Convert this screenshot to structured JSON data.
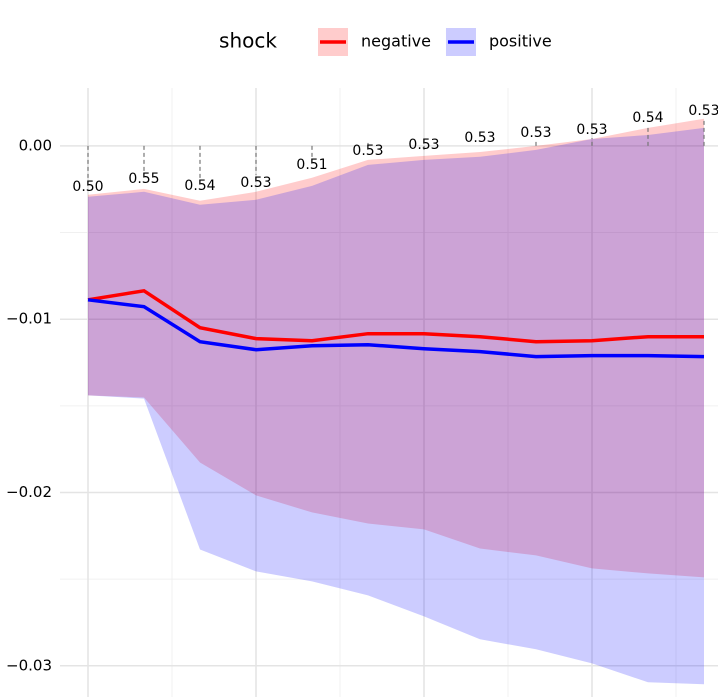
{
  "chart_data": {
    "type": "line",
    "legend_title": "shock",
    "x": [
      0,
      1,
      2,
      3,
      4,
      5,
      6,
      7,
      8,
      9,
      10,
      11
    ],
    "series": [
      {
        "name": "negative",
        "color": "#ff0000",
        "band_color": "rgba(255,0,0,0.2)",
        "values": [
          -0.00888,
          -0.00836,
          -0.01049,
          -0.01112,
          -0.01124,
          -0.01084,
          -0.01084,
          -0.01101,
          -0.0113,
          -0.01124,
          -0.01101,
          -0.01101
        ],
        "upper": [
          -0.00282,
          -0.00248,
          -0.00317,
          -0.00265,
          -0.00184,
          -0.00081,
          -0.00058,
          -0.00035,
          0,
          0.0004,
          0.00104,
          0.00156
        ],
        "lower": [
          -0.0144,
          -0.01452,
          -0.01827,
          -0.02017,
          -0.02115,
          -0.02179,
          -0.02213,
          -0.02323,
          -0.02363,
          -0.02438,
          -0.02467,
          -0.0249
        ]
      },
      {
        "name": "positive",
        "color": "#0000ff",
        "band_color": "rgba(0,0,255,0.2)",
        "values": [
          -0.00888,
          -0.00928,
          -0.0113,
          -0.01176,
          -0.01153,
          -0.01147,
          -0.0117,
          -0.01187,
          -0.01216,
          -0.0121,
          -0.0121,
          -0.01216
        ],
        "upper": [
          -0.00294,
          -0.00265,
          -0.0034,
          -0.00311,
          -0.00231,
          -0.0011,
          -0.00081,
          -0.00063,
          -0.00023,
          0.0004,
          0.00063,
          0.00104
        ],
        "lower": [
          -0.0144,
          -0.01458,
          -0.02329,
          -0.02455,
          -0.02513,
          -0.02594,
          -0.02715,
          -0.02847,
          -0.02905,
          -0.02986,
          -0.03095,
          -0.03107
        ]
      }
    ],
    "annotations": [
      "0.50",
      "0.55",
      "0.54",
      "0.53",
      "0.51",
      "0.53",
      "0.53",
      "0.53",
      "0.53",
      "0.53",
      "0.54",
      "0.53"
    ],
    "annotation_y": [
      -0.00236,
      -0.0019,
      -0.00231,
      -0.00213,
      -0.0011,
      -0.00029,
      6e-05,
      0.00046,
      0.00075,
      0.00092,
      0.00161,
      0.00202
    ],
    "xlim": [
      -0.5,
      11.25
    ],
    "xticks": [
      0,
      3,
      6,
      9
    ],
    "xminor": [
      1.5,
      4.5,
      7.5,
      10.5
    ],
    "ylim": [
      -0.0318,
      0.00334
    ],
    "yticks": [
      {
        "value": -0.03,
        "label": "−0.03"
      },
      {
        "value": -0.02,
        "label": "−0.02"
      },
      {
        "value": -0.01,
        "label": "−0.01"
      },
      {
        "value": 0,
        "label": "0.00"
      }
    ],
    "yminor": [
      -0.025,
      -0.015,
      -0.005
    ],
    "grid": true,
    "legend_position": "top"
  }
}
